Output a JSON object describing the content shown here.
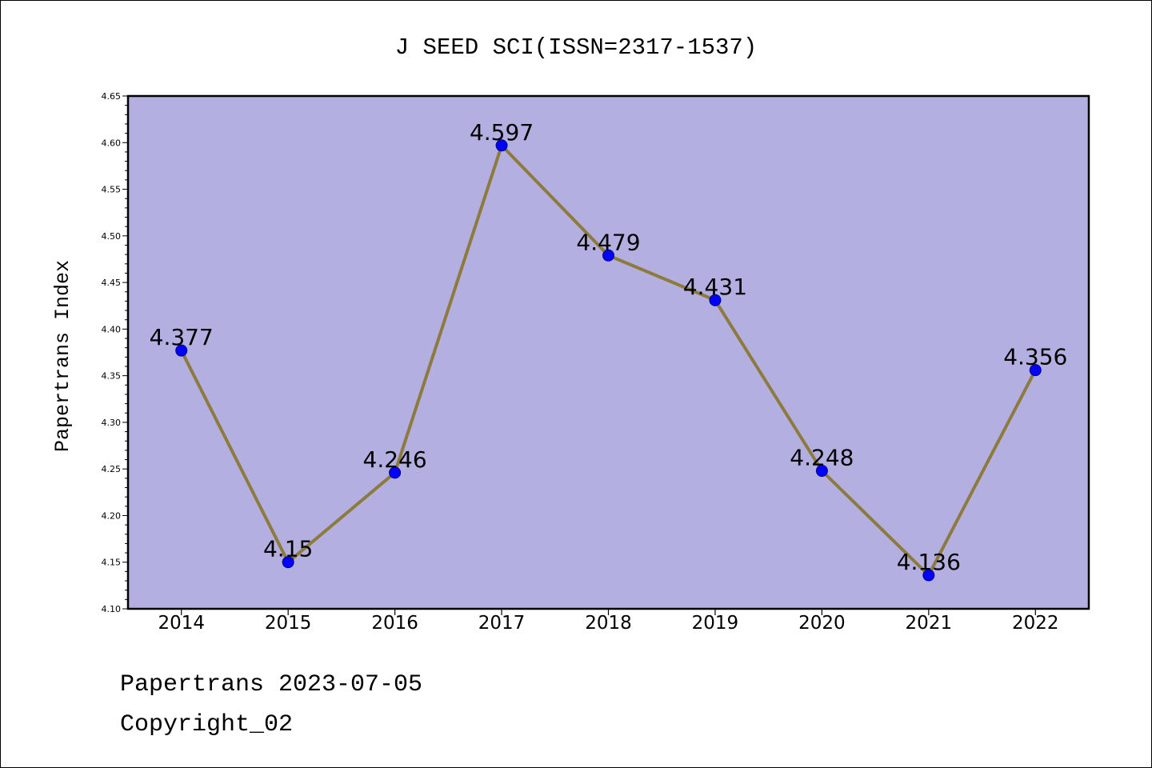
{
  "chart_data": {
    "type": "line",
    "title": "J SEED SCI(ISSN=2317-1537)",
    "xlabel": "",
    "ylabel": "Papertrans Index",
    "categories": [
      "2014",
      "2015",
      "2016",
      "2017",
      "2018",
      "2019",
      "2020",
      "2021",
      "2022"
    ],
    "values": [
      4.377,
      4.15,
      4.246,
      4.597,
      4.479,
      4.431,
      4.248,
      4.136,
      4.356
    ],
    "labels": [
      "4.377",
      "4.15",
      "4.246",
      "4.597",
      "4.479",
      "4.431",
      "4.248",
      "4.136",
      "4.356"
    ],
    "ylim": [
      4.1,
      4.65
    ],
    "yticks": [
      "4.10",
      "4.15",
      "4.20",
      "4.25",
      "4.30",
      "4.35",
      "4.40",
      "4.45",
      "4.50",
      "4.55",
      "4.60",
      "4.65"
    ],
    "grid": false,
    "legend": "none",
    "colors": {
      "plot_background": "#b4afe1",
      "line": "#8c7b3d",
      "marker": "#0000ff",
      "marker_edge": "#000080"
    }
  },
  "footer": {
    "source": "Papertrans 2023-07-05",
    "copyright": "Copyright_02"
  }
}
